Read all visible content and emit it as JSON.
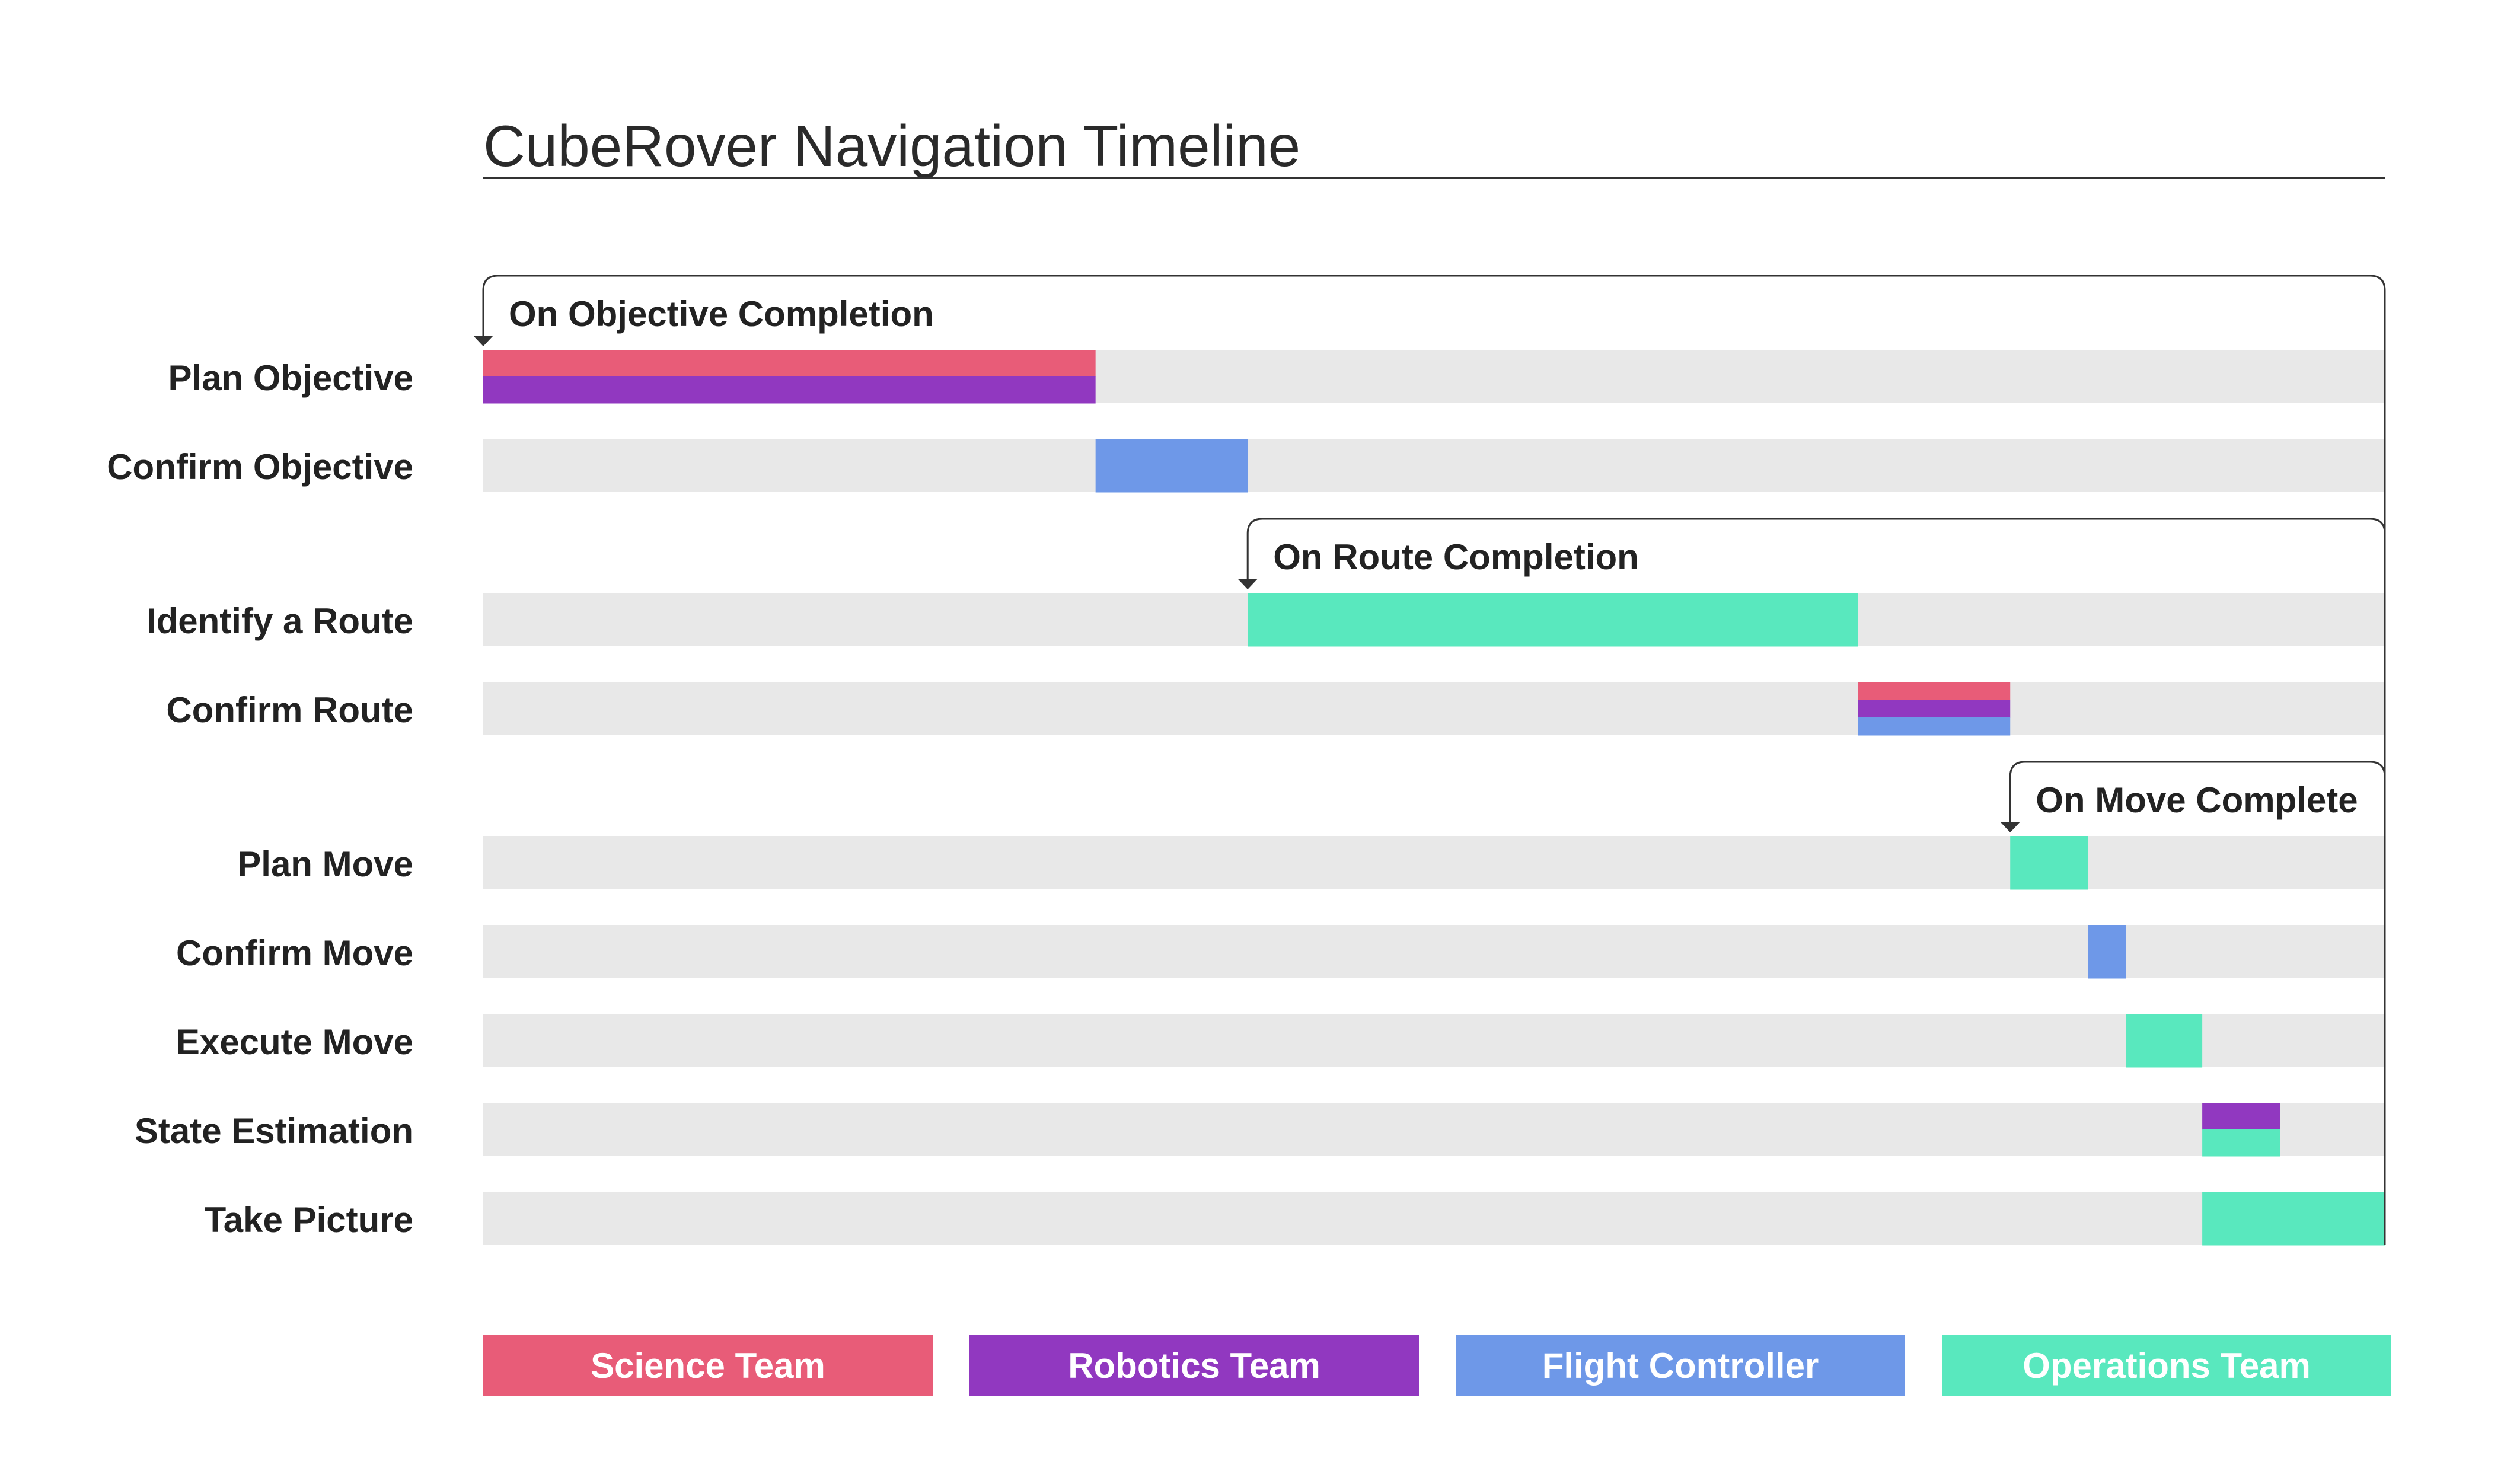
{
  "chart_data": {
    "type": "gantt",
    "title": "CubeRover Navigation Timeline",
    "colors": {
      "science": "#E85C78",
      "robotics": "#9138C0",
      "flight": "#6E98E8",
      "operations": "#59E8BE",
      "track": "#E8E8E8",
      "loop_line": "#333333",
      "title_rule": "#333333"
    },
    "x_range": [
      0,
      100
    ],
    "tasks": [
      {
        "label": "Plan Objective",
        "start": 0,
        "end": 32.2,
        "teams": [
          "science",
          "robotics"
        ]
      },
      {
        "label": "Confirm Objective",
        "start": 32.2,
        "end": 40.2,
        "teams": [
          "flight"
        ]
      },
      {
        "label": "Identify a Route",
        "start": 40.2,
        "end": 72.3,
        "teams": [
          "operations"
        ]
      },
      {
        "label": "Confirm Route",
        "start": 72.3,
        "end": 80.3,
        "teams": [
          "science",
          "robotics",
          "flight"
        ]
      },
      {
        "label": "Plan Move",
        "start": 80.3,
        "end": 84.4,
        "teams": [
          "operations"
        ]
      },
      {
        "label": "Confirm Move",
        "start": 84.4,
        "end": 86.4,
        "teams": [
          "flight"
        ]
      },
      {
        "label": "Execute Move",
        "start": 86.4,
        "end": 90.4,
        "teams": [
          "operations"
        ]
      },
      {
        "label": "State Estimation",
        "start": 90.4,
        "end": 94.5,
        "teams": [
          "robotics",
          "operations"
        ]
      },
      {
        "label": "Take Picture",
        "start": 90.4,
        "end": 100,
        "teams": [
          "operations"
        ]
      }
    ],
    "loops": [
      {
        "label": "On Objective Completion",
        "start": 0,
        "first_task": 0,
        "last_task": 8
      },
      {
        "label": "On Route Completion",
        "start": 40.2,
        "first_task": 2,
        "last_task": 8
      },
      {
        "label": "On Move Complete",
        "start": 80.3,
        "first_task": 4,
        "last_task": 8
      }
    ],
    "legend": [
      {
        "key": "science",
        "label": "Science Team"
      },
      {
        "key": "robotics",
        "label": "Robotics Team"
      },
      {
        "key": "flight",
        "label": "Flight Controller"
      },
      {
        "key": "operations",
        "label": "Operations Team"
      }
    ],
    "legend_position": "bottom"
  }
}
